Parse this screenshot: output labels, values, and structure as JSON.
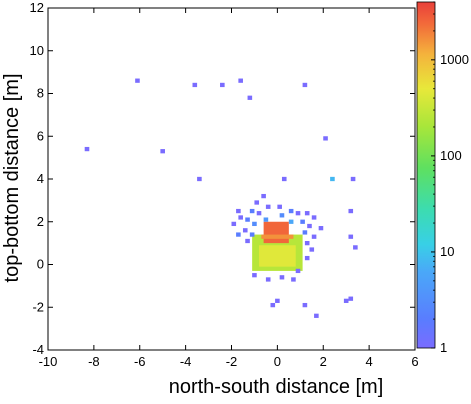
{
  "chart_data": {
    "type": "heatmap",
    "title": "",
    "xlabel": "north-south distance [m]",
    "ylabel": "top-bottom distance [m]",
    "xlim": [
      -10,
      6
    ],
    "ylim": [
      -4,
      12
    ],
    "x_ticks": [
      -10,
      -8,
      -6,
      -4,
      -2,
      0,
      2,
      4,
      6
    ],
    "y_ticks": [
      -4,
      -2,
      0,
      2,
      4,
      6,
      8,
      10,
      12
    ],
    "colorbar": {
      "scale": "log",
      "range": [
        1,
        4000
      ],
      "ticks": [
        1,
        10,
        100,
        1000
      ],
      "tick_labels": [
        "1",
        "10",
        "100",
        "1000"
      ]
    },
    "grid": false,
    "cell_size_m": 0.2,
    "points": [
      {
        "x": -6.1,
        "y": 8.6,
        "v": 1
      },
      {
        "x": -3.6,
        "y": 8.4,
        "v": 1
      },
      {
        "x": -2.4,
        "y": 8.4,
        "v": 1
      },
      {
        "x": -1.6,
        "y": 8.6,
        "v": 1
      },
      {
        "x": -1.2,
        "y": 7.8,
        "v": 1
      },
      {
        "x": 1.2,
        "y": 8.4,
        "v": 1
      },
      {
        "x": -8.3,
        "y": 5.4,
        "v": 1
      },
      {
        "x": -5.0,
        "y": 5.3,
        "v": 1
      },
      {
        "x": -3.4,
        "y": 4.0,
        "v": 1
      },
      {
        "x": 0.3,
        "y": 4.0,
        "v": 1
      },
      {
        "x": 2.1,
        "y": 5.9,
        "v": 1
      },
      {
        "x": 2.4,
        "y": 4.0,
        "v": 8
      },
      {
        "x": 3.3,
        "y": 4.0,
        "v": 1
      },
      {
        "x": 3.2,
        "y": 2.5,
        "v": 1
      },
      {
        "x": 3.2,
        "y": 1.3,
        "v": 1
      },
      {
        "x": 3.4,
        "y": 0.8,
        "v": 1
      },
      {
        "x": -0.6,
        "y": 3.2,
        "v": 1
      },
      {
        "x": -0.9,
        "y": 2.9,
        "v": 1
      },
      {
        "x": -0.4,
        "y": 2.7,
        "v": 1
      },
      {
        "x": -1.7,
        "y": 2.5,
        "v": 1
      },
      {
        "x": -1.1,
        "y": 2.5,
        "v": 2
      },
      {
        "x": -0.8,
        "y": 2.4,
        "v": 1
      },
      {
        "x": -1.6,
        "y": 2.2,
        "v": 1
      },
      {
        "x": -1.9,
        "y": 1.9,
        "v": 1
      },
      {
        "x": -1.3,
        "y": 2.1,
        "v": 2
      },
      {
        "x": -1.0,
        "y": 1.9,
        "v": 3
      },
      {
        "x": -1.4,
        "y": 1.6,
        "v": 1
      },
      {
        "x": -1.7,
        "y": 1.4,
        "v": 2
      },
      {
        "x": -1.1,
        "y": 1.4,
        "v": 2
      },
      {
        "x": -1.3,
        "y": 1.1,
        "v": 1
      },
      {
        "x": 0.1,
        "y": 2.7,
        "v": 1
      },
      {
        "x": 0.6,
        "y": 2.5,
        "v": 2
      },
      {
        "x": 0.9,
        "y": 2.4,
        "v": 1
      },
      {
        "x": 1.3,
        "y": 2.4,
        "v": 1
      },
      {
        "x": 1.6,
        "y": 2.2,
        "v": 1
      },
      {
        "x": 1.1,
        "y": 2.0,
        "v": 2
      },
      {
        "x": 1.4,
        "y": 1.8,
        "v": 1
      },
      {
        "x": 1.9,
        "y": 1.7,
        "v": 1
      },
      {
        "x": 1.2,
        "y": 1.5,
        "v": 2
      },
      {
        "x": 1.6,
        "y": 1.3,
        "v": 1
      },
      {
        "x": 1.3,
        "y": 1.0,
        "v": 1
      },
      {
        "x": 1.5,
        "y": 0.7,
        "v": 1
      },
      {
        "x": 1.3,
        "y": 0.3,
        "v": 1
      },
      {
        "x": 0.6,
        "y": 2.0,
        "v": 6
      },
      {
        "x": -0.5,
        "y": 2.1,
        "v": 4
      },
      {
        "x": 0.2,
        "y": 2.3,
        "v": 3
      },
      {
        "x": -1.0,
        "y": -0.5,
        "v": 1
      },
      {
        "x": -0.4,
        "y": -0.7,
        "v": 1
      },
      {
        "x": 0.2,
        "y": -0.6,
        "v": 1
      },
      {
        "x": 0.7,
        "y": -0.7,
        "v": 1
      },
      {
        "x": 0.9,
        "y": -0.3,
        "v": 1
      },
      {
        "x": -0.2,
        "y": -1.9,
        "v": 1
      },
      {
        "x": 0.0,
        "y": -1.7,
        "v": 1
      },
      {
        "x": 1.2,
        "y": -1.9,
        "v": 1
      },
      {
        "x": 1.7,
        "y": -2.4,
        "v": 1
      },
      {
        "x": 3.2,
        "y": -1.6,
        "v": 1
      },
      {
        "x": 3.0,
        "y": -1.7,
        "v": 1
      }
    ],
    "regions": [
      {
        "x0": -1.1,
        "x1": 1.1,
        "y0": -0.3,
        "y1": 1.4,
        "v": 250
      },
      {
        "x0": -0.8,
        "x1": 0.8,
        "y0": -0.1,
        "y1": 0.9,
        "v": 450
      },
      {
        "x0": -0.6,
        "x1": 0.5,
        "y0": 1.0,
        "y1": 2.0,
        "v": 2500
      },
      {
        "x0": -0.7,
        "x1": 0.7,
        "y0": 1.2,
        "y1": 1.4,
        "v": 1600
      }
    ]
  }
}
